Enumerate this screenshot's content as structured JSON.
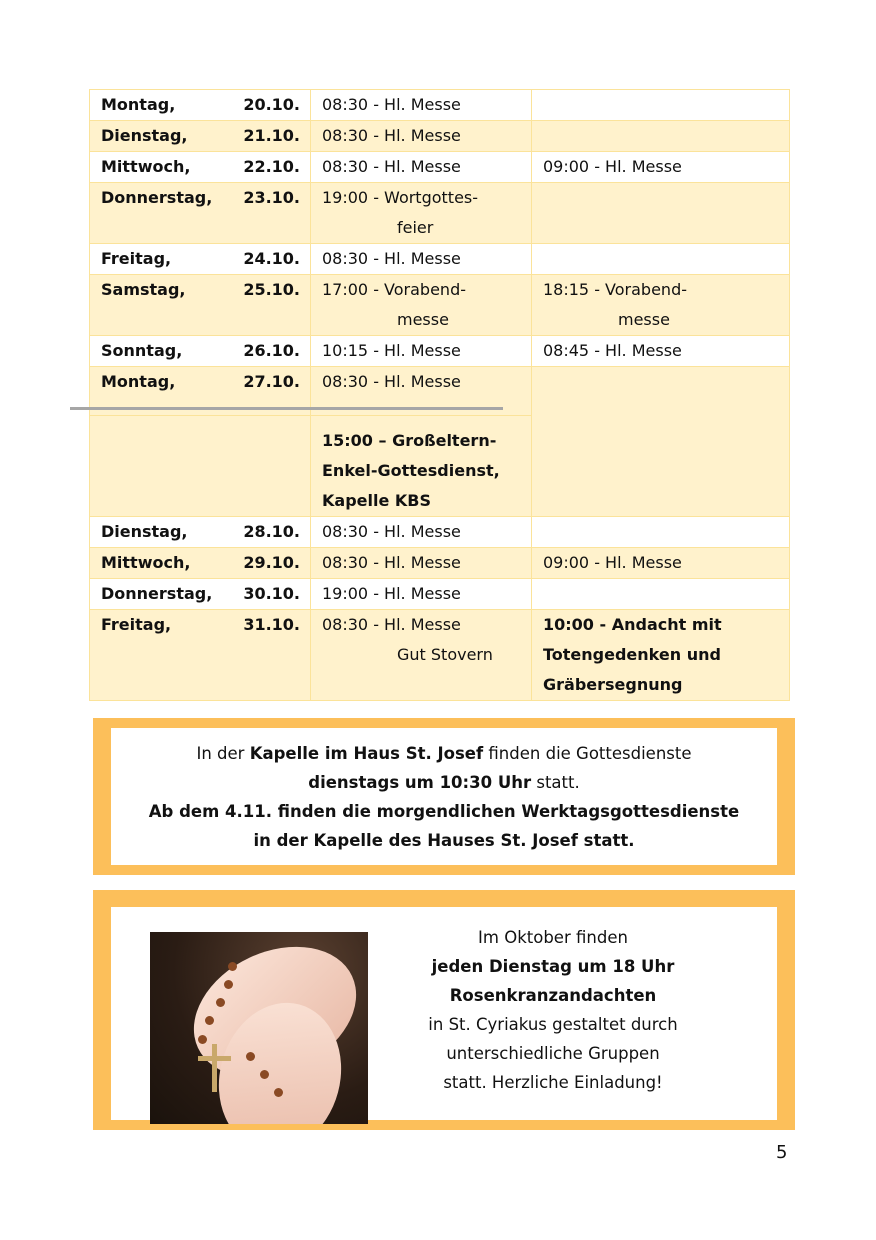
{
  "schedule": [
    {
      "day": "Montag,",
      "date": "20.10.",
      "c2": [
        "08:30 - Hl. Messe"
      ],
      "c3": [],
      "shade": "w"
    },
    {
      "day": "Dienstag,",
      "date": "21.10.",
      "c2": [
        "08:30 - Hl. Messe"
      ],
      "c3": [],
      "shade": "c"
    },
    {
      "day": "Mittwoch,",
      "date": "22.10.",
      "c2": [
        "08:30 - Hl. Messe"
      ],
      "c3": [
        "09:00 - Hl. Messe"
      ],
      "shade": "w"
    },
    {
      "day": "Donnerstag,",
      "date": "23.10.",
      "c2": [
        "19:00 - Wortgottes-",
        "feier"
      ],
      "c3": [],
      "shade": "c"
    },
    {
      "day": "Freitag,",
      "date": "24.10.",
      "c2": [
        "08:30 - Hl. Messe"
      ],
      "c3": [],
      "shade": "w"
    },
    {
      "day": "Samstag,",
      "date": "25.10.",
      "c2": [
        "17:00 - Vorabend-",
        "messe"
      ],
      "c3": [
        "18:15 - Vorabend-",
        "messe"
      ],
      "shade": "c"
    },
    {
      "day": "Sonntag,",
      "date": "26.10.",
      "c2": [
        "10:15 - Hl. Messe"
      ],
      "c3": [
        "08:45 - Hl. Messe"
      ],
      "shade": "w"
    },
    {
      "day": "Montag,",
      "date": "27.10.",
      "c2": [
        "08:30 - Hl. Messe"
      ],
      "extra": [
        "15:00 – Großeltern-",
        "Enkel-Gottesdienst,",
        "Kapelle KBS"
      ],
      "c3": [],
      "shade": "c"
    },
    {
      "day": "Dienstag,",
      "date": "28.10.",
      "c2": [
        "08:30 - Hl. Messe"
      ],
      "c3": [],
      "shade": "w"
    },
    {
      "day": "Mittwoch,",
      "date": "29.10.",
      "c2": [
        "08:30 - Hl. Messe"
      ],
      "c3": [
        "09:00 - Hl. Messe"
      ],
      "shade": "c"
    },
    {
      "day": "Donnerstag,",
      "date": "30.10.",
      "c2": [
        "19:00 - Hl. Messe"
      ],
      "c3": [],
      "shade": "w"
    },
    {
      "day": "Freitag,",
      "date": "31.10.",
      "c2": [
        "08:30 - Hl. Messe",
        "Gut Stovern"
      ],
      "c3": [
        "10:00 - Andacht mit",
        "Totengedenken und",
        "Gräbersegnung"
      ],
      "c3bold": true,
      "shade": "c"
    }
  ],
  "notice1": {
    "l1a": "In der ",
    "l1b": "Kapelle im Haus St. Josef",
    "l1c": " finden die Gottesdienste",
    "l2a": "dienstags um 10:30 Uhr",
    "l2b": " statt.",
    "l3": "Ab dem 4.11. finden die morgendlichen Werktagsgottesdienste",
    "l4": "in der Kapelle des Hauses St. Josef statt."
  },
  "notice2": {
    "l1": "Im Oktober finden",
    "l2": "jeden Dienstag um 18 Uhr",
    "l3": "Rosenkranzandachten",
    "l4": "in St. Cyriakus gestaltet durch",
    "l5": "unterschiedliche Gruppen",
    "l6": "statt. Herzliche Einladung!",
    "image": "praying-hands-with-rosary"
  },
  "page_number": "5",
  "colors": {
    "cream": "#fff2cc",
    "border": "#fbe39a",
    "box_frame": "#fcbf5a"
  }
}
